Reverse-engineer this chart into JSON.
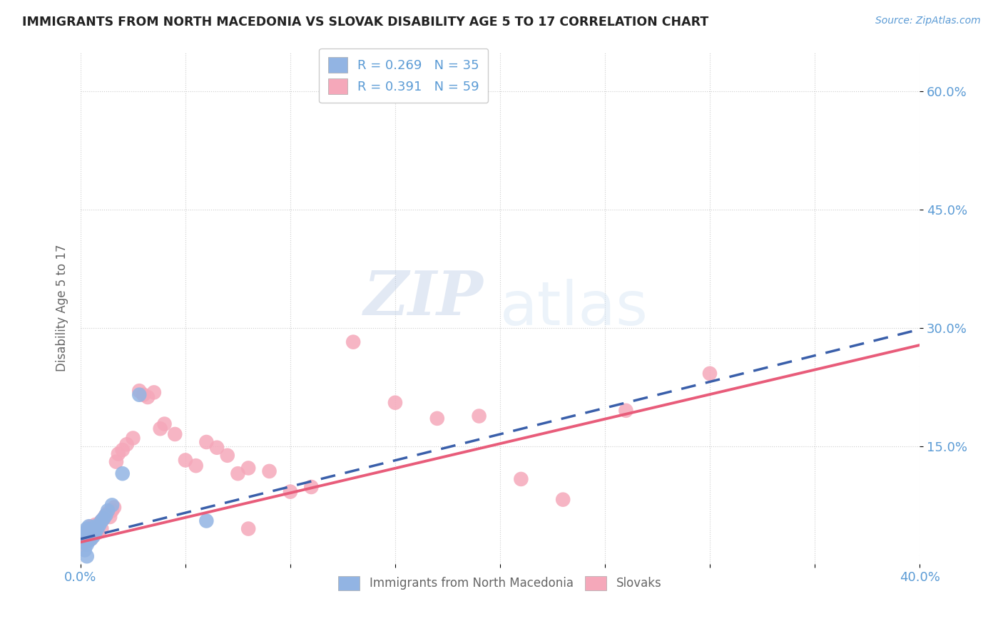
{
  "title": "IMMIGRANTS FROM NORTH MACEDONIA VS SLOVAK DISABILITY AGE 5 TO 17 CORRELATION CHART",
  "source": "Source: ZipAtlas.com",
  "ylabel": "Disability Age 5 to 17",
  "xlim": [
    0,
    0.4
  ],
  "ylim": [
    0,
    0.65
  ],
  "xtick_vals": [
    0.0,
    0.05,
    0.1,
    0.15,
    0.2,
    0.25,
    0.3,
    0.35,
    0.4
  ],
  "xtick_labels": [
    "0.0%",
    "",
    "",
    "",
    "",
    "",
    "",
    "",
    "40.0%"
  ],
  "ytick_vals": [
    0.15,
    0.3,
    0.45,
    0.6
  ],
  "ytick_labels": [
    "15.0%",
    "30.0%",
    "45.0%",
    "60.0%"
  ],
  "legend_line1": "R = 0.269   N = 35",
  "legend_line2": "R = 0.391   N = 59",
  "color_blue_fill": "#92b4e3",
  "color_pink_fill": "#f5a8ba",
  "color_blue_line": "#3a5faa",
  "color_pink_line": "#e85c7a",
  "color_axis_text": "#5b9bd5",
  "color_label_text": "#666666",
  "color_grid": "#cccccc",
  "color_bg": "#ffffff",
  "watermark_zip": "ZIP",
  "watermark_atlas": "atlas",
  "blue_x": [
    0.001,
    0.001,
    0.001,
    0.002,
    0.002,
    0.002,
    0.002,
    0.003,
    0.003,
    0.003,
    0.003,
    0.003,
    0.004,
    0.004,
    0.004,
    0.004,
    0.005,
    0.005,
    0.005,
    0.006,
    0.006,
    0.007,
    0.007,
    0.008,
    0.009,
    0.01,
    0.011,
    0.012,
    0.013,
    0.015,
    0.02,
    0.028,
    0.06,
    0.003,
    0.002
  ],
  "blue_y": [
    0.03,
    0.035,
    0.038,
    0.028,
    0.032,
    0.036,
    0.04,
    0.025,
    0.03,
    0.035,
    0.04,
    0.045,
    0.03,
    0.038,
    0.042,
    0.048,
    0.032,
    0.038,
    0.044,
    0.035,
    0.042,
    0.04,
    0.048,
    0.045,
    0.05,
    0.055,
    0.058,
    0.062,
    0.068,
    0.075,
    0.115,
    0.215,
    0.055,
    0.01,
    0.018
  ],
  "pink_x": [
    0.001,
    0.001,
    0.002,
    0.002,
    0.002,
    0.003,
    0.003,
    0.003,
    0.004,
    0.004,
    0.005,
    0.005,
    0.005,
    0.006,
    0.006,
    0.007,
    0.007,
    0.008,
    0.008,
    0.009,
    0.01,
    0.01,
    0.011,
    0.012,
    0.013,
    0.014,
    0.015,
    0.016,
    0.017,
    0.018,
    0.02,
    0.022,
    0.025,
    0.028,
    0.03,
    0.032,
    0.035,
    0.038,
    0.04,
    0.045,
    0.05,
    0.055,
    0.06,
    0.065,
    0.07,
    0.075,
    0.08,
    0.09,
    0.1,
    0.11,
    0.13,
    0.15,
    0.17,
    0.19,
    0.21,
    0.23,
    0.26,
    0.3,
    0.08
  ],
  "pink_y": [
    0.025,
    0.03,
    0.028,
    0.032,
    0.038,
    0.03,
    0.035,
    0.042,
    0.038,
    0.045,
    0.032,
    0.04,
    0.048,
    0.038,
    0.045,
    0.042,
    0.05,
    0.04,
    0.048,
    0.052,
    0.045,
    0.055,
    0.058,
    0.062,
    0.065,
    0.06,
    0.068,
    0.072,
    0.13,
    0.14,
    0.145,
    0.152,
    0.16,
    0.22,
    0.215,
    0.212,
    0.218,
    0.172,
    0.178,
    0.165,
    0.132,
    0.125,
    0.155,
    0.148,
    0.138,
    0.115,
    0.122,
    0.118,
    0.092,
    0.098,
    0.282,
    0.205,
    0.185,
    0.188,
    0.108,
    0.082,
    0.195,
    0.242,
    0.045
  ],
  "blue_trendline_x": [
    0.0,
    0.4
  ],
  "blue_trendline_y": [
    0.032,
    0.298
  ],
  "pink_trendline_x": [
    0.0,
    0.4
  ],
  "pink_trendline_y": [
    0.028,
    0.278
  ]
}
